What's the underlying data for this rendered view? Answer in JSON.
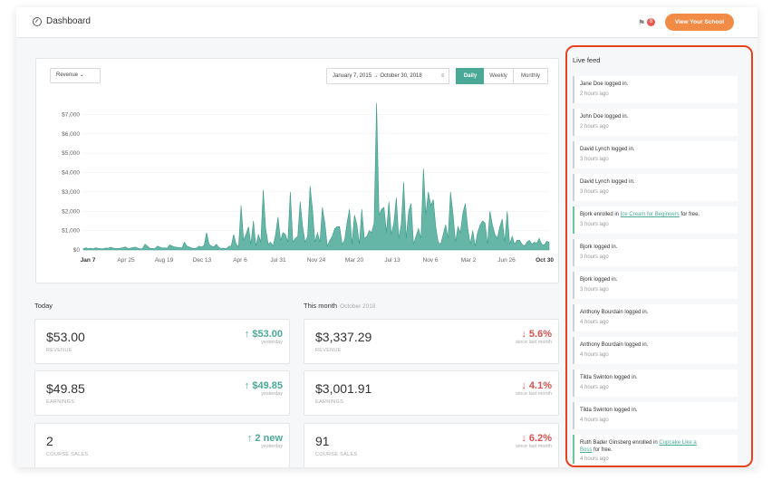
{
  "header": {
    "title": "Dashboard",
    "notification_count": "8",
    "view_button": "View Your School"
  },
  "chart_controls": {
    "metric_select": "Revenue",
    "date_range": "January 7, 2015 → October 30, 2018",
    "periods": [
      "Daily",
      "Weekly",
      "Monthly"
    ],
    "active_period": "Daily"
  },
  "chart_data": {
    "type": "area",
    "title": "",
    "xlabel": "",
    "ylabel": "",
    "ylim": [
      0,
      8000
    ],
    "y_ticks": [
      "$0",
      "$1,000",
      "$2,000",
      "$3,000",
      "$4,000",
      "$5,000",
      "$6,000",
      "$7,000"
    ],
    "x_ticks": [
      "Jan 7",
      "Apr 25",
      "Aug 19",
      "Dec 13",
      "Apr 6",
      "Jul 31",
      "Nov 24",
      "Mar 20",
      "Jul 13",
      "Nov 6",
      "Mar 2",
      "Jun 26",
      "Oct 30"
    ],
    "color": "#4aa996",
    "series": [
      {
        "values": [
          60,
          110,
          70,
          90,
          50,
          120,
          80,
          70,
          60,
          100,
          90,
          140,
          100,
          80,
          75,
          90,
          110,
          160,
          80,
          90,
          120,
          150,
          100,
          60,
          70,
          300,
          200,
          90,
          80,
          60,
          200,
          150,
          100,
          110,
          80,
          260,
          200,
          160,
          140,
          120,
          110,
          400,
          200,
          150,
          100,
          80,
          100,
          200,
          150,
          240,
          900,
          300,
          200,
          160,
          300,
          120,
          80,
          100,
          60,
          180,
          210,
          800,
          300,
          160,
          2300,
          500,
          800,
          1200,
          300,
          1500,
          200,
          800,
          400,
          3100,
          1100,
          300,
          400,
          200,
          800,
          1700,
          500,
          900,
          800,
          400,
          3000,
          400,
          600,
          700,
          2500,
          1200,
          400,
          700,
          3300,
          2100,
          400,
          900,
          400,
          2200,
          1400,
          200,
          500,
          700,
          1100,
          1200,
          1200,
          300,
          500,
          1400,
          2100,
          300,
          1800,
          1300,
          300,
          2100,
          600,
          700,
          1000,
          900,
          1400,
          7600,
          1800,
          2100,
          2200,
          900,
          2500,
          800,
          1400,
          2700,
          600,
          1300,
          3500,
          600,
          2000,
          2400,
          300,
          700,
          1100,
          600,
          4200,
          1800,
          3000,
          2300,
          2600,
          1200,
          400,
          300,
          800,
          1300,
          600,
          3000,
          1900,
          400,
          1200,
          900,
          1900,
          2400,
          1100,
          300,
          1000,
          200,
          900,
          1300,
          1500,
          1400,
          300,
          2000,
          1300,
          800,
          600,
          1200,
          1600,
          400,
          2000,
          300,
          700,
          300,
          500,
          500,
          300,
          200,
          400,
          500,
          300,
          400,
          350,
          600,
          300,
          250,
          450,
          400
        ]
      }
    ]
  },
  "today": {
    "heading": "Today",
    "cards": [
      {
        "value": "$53.00",
        "label": "REVENUE",
        "delta": "↑ $53.00",
        "since": "yesterday",
        "dir": "up"
      },
      {
        "value": "$49.85",
        "label": "EARNINGS",
        "delta": "↑ $49.85",
        "since": "yesterday",
        "dir": "up"
      },
      {
        "value": "2",
        "label": "COURSE SALES",
        "delta": "↑ 2 new",
        "since": "yesterday",
        "dir": "up"
      }
    ]
  },
  "month": {
    "heading": "This month",
    "subheading": "October 2018",
    "cards": [
      {
        "value": "$3,337.29",
        "label": "REVENUE",
        "delta": "↓ 5.6%",
        "since": "since last month",
        "dir": "down"
      },
      {
        "value": "$3,001.91",
        "label": "EARNINGS",
        "delta": "↓ 4.1%",
        "since": "since last month",
        "dir": "down"
      },
      {
        "value": "91",
        "label": "COURSE SALES",
        "delta": "↓ 6.2%",
        "since": "since last month",
        "dir": "down"
      }
    ]
  },
  "live_feed": {
    "title": "Live feed",
    "items": [
      {
        "pre": "Jane Doe logged in.",
        "link": "",
        "post": "",
        "time": "2 hours ago",
        "green": false
      },
      {
        "pre": "John Doe logged in.",
        "link": "",
        "post": "",
        "time": "2 hours ago",
        "green": false
      },
      {
        "pre": "David Lynch logged in.",
        "link": "",
        "post": "",
        "time": "3 hours ago",
        "green": false
      },
      {
        "pre": "David Lynch logged in.",
        "link": "",
        "post": "",
        "time": "3 hours ago",
        "green": false
      },
      {
        "pre": "Bjork enrolled in ",
        "link": "Ice Cream for Beginners",
        "post": " for free.",
        "time": "3 hours ago",
        "green": true
      },
      {
        "pre": "Bjork logged in.",
        "link": "",
        "post": "",
        "time": "3 hours ago",
        "green": false
      },
      {
        "pre": "Bjork logged in.",
        "link": "",
        "post": "",
        "time": "3 hours ago",
        "green": false
      },
      {
        "pre": "Anthony Bourdain logged in.",
        "link": "",
        "post": "",
        "time": "4 hours ago",
        "green": false
      },
      {
        "pre": "Anthony Bourdain logged in.",
        "link": "",
        "post": "",
        "time": "4 hours ago",
        "green": false
      },
      {
        "pre": "Tilda Swinton logged in.",
        "link": "",
        "post": "",
        "time": "4 hours ago",
        "green": false
      },
      {
        "pre": "Tilda Swinton logged in.",
        "link": "",
        "post": "",
        "time": "4 hours ago",
        "green": false
      },
      {
        "pre": "Ruth Bader Ginsberg enrolled in ",
        "link": "Cupcake Like a",
        "post": "",
        "time": "",
        "extra": "Boss for free.",
        "extra_time": "4 hours ago",
        "green": true
      }
    ]
  }
}
